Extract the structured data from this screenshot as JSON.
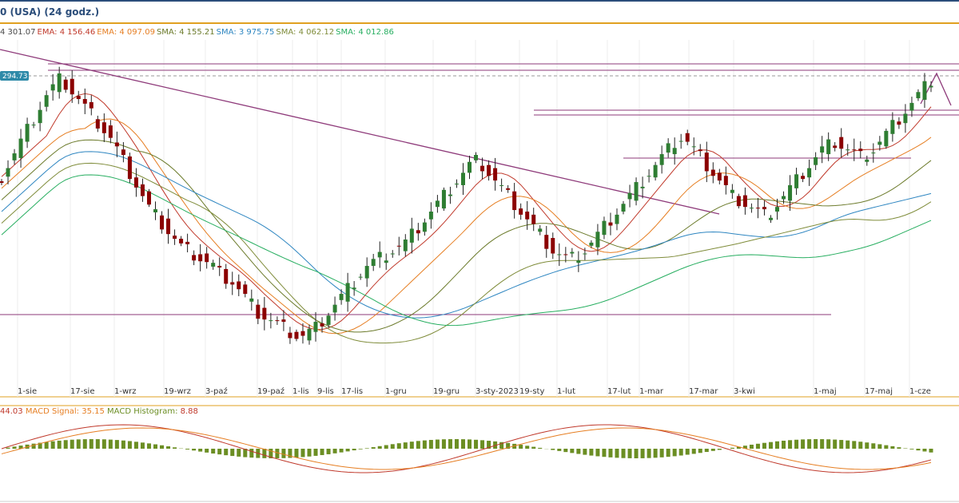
{
  "header": {
    "title": "0 (USA) (24 godz.)"
  },
  "indicators_legend": [
    {
      "label": "4 301.07",
      "color": "#4a4a4a"
    },
    {
      "label": "EMA: 4 156.46",
      "color": "#c0392b"
    },
    {
      "label": "EMA: 4 097.09",
      "color": "#e67e22"
    },
    {
      "label": "SMA: 4 155.21",
      "color": "#6b7a2a"
    },
    {
      "label": "SMA: 3 975.75",
      "color": "#2e86c1"
    },
    {
      "label": "SMA: 4 062.12",
      "color": "#7f8c3a"
    },
    {
      "label": "SMA: 4 012.86",
      "color": "#27ae60"
    }
  ],
  "price_tag": "294.73",
  "macd_legend": [
    {
      "label": "44.03",
      "color": "#c0392b"
    },
    {
      "label": "MACD Signal: 35.15",
      "color": "#e67e22"
    },
    {
      "label": "MACD Histogram:",
      "color": "#6b8e23"
    },
    {
      "label": "8.88",
      "color": "#c0392b"
    }
  ],
  "chart_data": {
    "type": "candlestick",
    "x_tick_labels": [
      "1-sie",
      "17-sie",
      "1-wrz",
      "19-wrz",
      "3-paź",
      "19-paź",
      "1-lis",
      "9-lis",
      "17-lis",
      "1-gru",
      "19-gru",
      "3-sty-2023",
      "19-sty",
      "1-lut",
      "17-lut",
      "1-mar",
      "17-mar",
      "3-kwi",
      "1-maj",
      "17-maj",
      "1-cze"
    ],
    "close": [
      4050,
      4080,
      4110,
      4140,
      4170,
      4200,
      4230,
      4260,
      4280,
      4300,
      4290,
      4270,
      4250,
      4230,
      4210,
      4190,
      4170,
      4150,
      4120,
      4090,
      4060,
      4030,
      4000,
      3970,
      3950,
      3930,
      3910,
      3890,
      3870,
      3860,
      3850,
      3840,
      3830,
      3820,
      3800,
      3790,
      3780,
      3760,
      3740,
      3720,
      3700,
      3690,
      3680,
      3670,
      3660,
      3650,
      3640,
      3640,
      3650,
      3660,
      3680,
      3700,
      3720,
      3740,
      3760,
      3780,
      3800,
      3820,
      3830,
      3840,
      3850,
      3860,
      3870,
      3880,
      3900,
      3920,
      3940,
      3960,
      3980,
      4000,
      4020,
      4040,
      4060,
      4080,
      4090,
      4080,
      4060,
      4040,
      4020,
      4000,
      3980,
      3960,
      3940,
      3920,
      3900,
      3880,
      3860,
      3850,
      3840,
      3840,
      3850,
      3860,
      3880,
      3900,
      3920,
      3940,
      3960,
      3980,
      4000,
      4020,
      4040,
      4060,
      4080,
      4100,
      4120,
      4140,
      4150,
      4140,
      4120,
      4100,
      4080,
      4060,
      4040,
      4020,
      4000,
      3990,
      3980,
      3970,
      3960,
      3950,
      3960,
      3980,
      4000,
      4020,
      4040,
      4060,
      4080,
      4100,
      4120,
      4130,
      4140,
      4130,
      4120,
      4110,
      4100,
      4110,
      4120,
      4140,
      4160,
      4180,
      4200,
      4220,
      4240,
      4260,
      4280,
      4300
    ],
    "series": [
      {
        "name": "EMA",
        "color": "#c0392b"
      },
      {
        "name": "EMA",
        "color": "#e67e22"
      },
      {
        "name": "SMA",
        "color": "#6b7a2a"
      },
      {
        "name": "SMA",
        "color": "#2e86c1"
      },
      {
        "name": "SMA",
        "color": "#7f8c3a"
      },
      {
        "name": "SMA",
        "color": "#27ae60"
      }
    ],
    "macd": {
      "macd": 44.03,
      "signal": 35.15,
      "histogram": 8.88
    }
  }
}
